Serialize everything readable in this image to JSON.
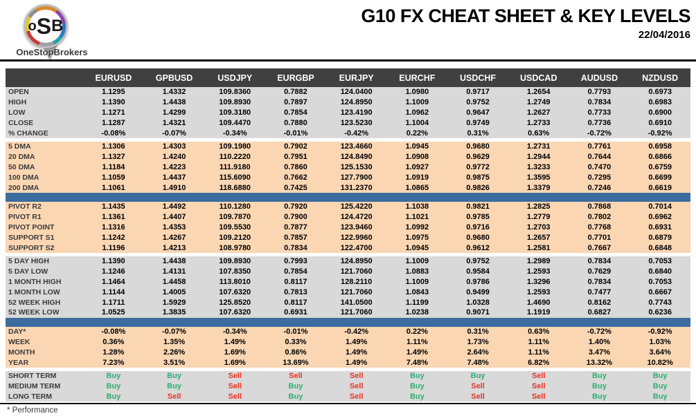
{
  "header": {
    "title": "G10 FX CHEAT SHEET & KEY LEVELS",
    "date": "22/04/2016"
  },
  "logo": {
    "letters": [
      "o",
      "S",
      "B"
    ],
    "brand": "OneStopBrokers"
  },
  "colors": {
    "header_bg": "#404040",
    "section_gray": "#d9d9d9",
    "section_peach": "#fad6b3",
    "accent_blue": "#3c6b9e",
    "buy_green": "#2eae71",
    "sell_red": "#ea3323",
    "pivot_green": "#00a550",
    "pivot_navy": "#203864",
    "support_red": "#f02c1e"
  },
  "table": {
    "columns": [
      "EURUSD",
      "GPBUSD",
      "USDJPY",
      "EURGBP",
      "EURJPY",
      "EURCHF",
      "USDCHF",
      "USDCAD",
      "AUDUSD",
      "NZDUSD"
    ],
    "sections": [
      {
        "id": "ohlc",
        "bg": "gray",
        "gap_before": false,
        "divider_before": false,
        "rows": [
          {
            "label": "OPEN",
            "values": [
              "1.1295",
              "1.4332",
              "109.8360",
              "0.7882",
              "124.0400",
              "1.0980",
              "0.9717",
              "1.2654",
              "0.7793",
              "0.6973"
            ]
          },
          {
            "label": "HIGH",
            "values": [
              "1.1390",
              "1.4438",
              "109.8930",
              "0.7897",
              "124.8950",
              "1.1009",
              "0.9752",
              "1.2749",
              "0.7834",
              "0.6983"
            ]
          },
          {
            "label": "LOW",
            "values": [
              "1.1271",
              "1.4299",
              "109.3180",
              "0.7854",
              "123.4190",
              "1.0962",
              "0.9647",
              "1.2627",
              "0.7733",
              "0.6900"
            ]
          },
          {
            "label": "CLOSE",
            "values": [
              "1.1287",
              "1.4321",
              "109.4470",
              "0.7880",
              "123.5230",
              "1.1004",
              "0.9749",
              "1.2733",
              "0.7736",
              "0.6910"
            ]
          },
          {
            "label": "% CHANGE",
            "values": [
              "-0.08%",
              "-0.07%",
              "-0.34%",
              "-0.01%",
              "-0.42%",
              "0.22%",
              "0.31%",
              "0.63%",
              "-0.72%",
              "-0.92%"
            ]
          }
        ]
      },
      {
        "id": "dma",
        "bg": "peach",
        "gap_before": true,
        "divider_before": false,
        "rows": [
          {
            "label": "5 DMA",
            "values": [
              "1.1306",
              "1.4303",
              "109.1980",
              "0.7902",
              "123.4660",
              "1.0945",
              "0.9680",
              "1.2731",
              "0.7761",
              "0.6958"
            ]
          },
          {
            "label": "20 DMA",
            "values": [
              "1.1327",
              "1.4240",
              "110.2220",
              "0.7951",
              "124.8490",
              "1.0908",
              "0.9629",
              "1.2944",
              "0.7644",
              "0.6866"
            ]
          },
          {
            "label": "50 DMA",
            "values": [
              "1.1184",
              "1.4223",
              "111.9180",
              "0.7860",
              "125.1530",
              "1.0927",
              "0.9772",
              "1.3233",
              "0.7470",
              "0.6759"
            ]
          },
          {
            "label": "100 DMA",
            "values": [
              "1.1059",
              "1.4437",
              "115.6090",
              "0.7662",
              "127.7900",
              "1.0919",
              "0.9875",
              "1.3595",
              "0.7295",
              "0.6699"
            ]
          },
          {
            "label": "200 DMA",
            "values": [
              "1.1061",
              "1.4910",
              "118.6880",
              "0.7425",
              "131.2370",
              "1.0865",
              "0.9826",
              "1.3379",
              "0.7246",
              "0.6619"
            ]
          }
        ]
      },
      {
        "id": "pivots",
        "bg": "peach",
        "gap_before": false,
        "divider_before": true,
        "rows": [
          {
            "label": "PIVOT R2",
            "label_class": "green",
            "values": [
              "1.1435",
              "1.4492",
              "110.1280",
              "0.7920",
              "125.4220",
              "1.1038",
              "0.9821",
              "1.2825",
              "0.7868",
              "0.7014"
            ]
          },
          {
            "label": "PIVOT R1",
            "label_class": "green",
            "values": [
              "1.1361",
              "1.4407",
              "109.7870",
              "0.7900",
              "124.4720",
              "1.1021",
              "0.9785",
              "1.2779",
              "0.7802",
              "0.6962"
            ]
          },
          {
            "label": "PIVOT POINT",
            "label_class": "navy",
            "values": [
              "1.1316",
              "1.4353",
              "109.5530",
              "0.7877",
              "123.9460",
              "1.0992",
              "0.9716",
              "1.2703",
              "0.7768",
              "0.6931"
            ]
          },
          {
            "label": "SUPPORT S1",
            "label_class": "red",
            "values": [
              "1.1242",
              "1.4267",
              "109.2120",
              "0.7857",
              "122.9960",
              "1.0975",
              "0.9680",
              "1.2657",
              "0.7701",
              "0.6879"
            ]
          },
          {
            "label": "SUPPORT S2",
            "label_class": "red",
            "values": [
              "1.1196",
              "1.4213",
              "108.9780",
              "0.7834",
              "122.4700",
              "1.0945",
              "0.9612",
              "1.2581",
              "0.7667",
              "0.6848"
            ]
          }
        ]
      },
      {
        "id": "ranges",
        "bg": "gray",
        "gap_before": true,
        "divider_before": false,
        "rows": [
          {
            "label": "5 DAY HIGH",
            "values": [
              "1.1390",
              "1.4438",
              "109.8930",
              "0.7993",
              "124.8950",
              "1.1009",
              "0.9752",
              "1.2989",
              "0.7834",
              "0.7053"
            ]
          },
          {
            "label": "5 DAY LOW",
            "values": [
              "1.1246",
              "1.4131",
              "107.8350",
              "0.7854",
              "121.7060",
              "1.0883",
              "0.9584",
              "1.2593",
              "0.7629",
              "0.6840"
            ]
          },
          {
            "label": "1 MONTH HIGH",
            "values": [
              "1.1464",
              "1.4458",
              "113.8010",
              "0.8117",
              "128.2110",
              "1.1009",
              "0.9786",
              "1.3296",
              "0.7834",
              "0.7053"
            ]
          },
          {
            "label": "1 MONTH LOW",
            "values": [
              "1.1144",
              "1.4005",
              "107.6320",
              "0.7813",
              "121.7060",
              "1.0843",
              "0.9499",
              "1.2593",
              "0.7477",
              "0.6667"
            ]
          },
          {
            "label": "52 WEEK HIGH",
            "values": [
              "1.1711",
              "1.5929",
              "125.8520",
              "0.8117",
              "141.0500",
              "1.1199",
              "1.0328",
              "1.4690",
              "0.8162",
              "0.7743"
            ]
          },
          {
            "label": "52 WEEK LOW",
            "values": [
              "1.0525",
              "1.3835",
              "107.6320",
              "0.6931",
              "121.7060",
              "1.0238",
              "0.9071",
              "1.1919",
              "0.6827",
              "0.6236"
            ]
          }
        ]
      },
      {
        "id": "performance",
        "bg": "peach",
        "gap_before": false,
        "divider_before": true,
        "rows": [
          {
            "label": "DAY*",
            "values": [
              "-0.08%",
              "-0.07%",
              "-0.34%",
              "-0.01%",
              "-0.42%",
              "0.22%",
              "0.31%",
              "0.63%",
              "-0.72%",
              "-0.92%"
            ]
          },
          {
            "label": "WEEK",
            "values": [
              "0.36%",
              "1.35%",
              "1.49%",
              "0.33%",
              "1.49%",
              "1.11%",
              "1.73%",
              "1.11%",
              "1.40%",
              "1.03%"
            ]
          },
          {
            "label": "MONTH",
            "values": [
              "1.28%",
              "2.26%",
              "1.69%",
              "0.86%",
              "1.49%",
              "1.49%",
              "2.64%",
              "1.11%",
              "3.47%",
              "3.64%"
            ]
          },
          {
            "label": "YEAR",
            "values": [
              "7.23%",
              "3.51%",
              "1.69%",
              "13.69%",
              "1.49%",
              "7.48%",
              "7.48%",
              "6.82%",
              "13.32%",
              "10.82%"
            ]
          }
        ]
      },
      {
        "id": "signals",
        "bg": "gray",
        "gap_before": true,
        "divider_before": false,
        "rows": [
          {
            "label": "SHORT TERM",
            "values": [
              "Buy",
              "Buy",
              "Sell",
              "Sell",
              "Sell",
              "Buy",
              "Buy",
              "Sell",
              "Buy",
              "Buy"
            ]
          },
          {
            "label": "MEDIUM TERM",
            "values": [
              "Buy",
              "Buy",
              "Sell",
              "Buy",
              "Sell",
              "Buy",
              "Sell",
              "Sell",
              "Buy",
              "Buy"
            ]
          },
          {
            "label": "LONG TERM",
            "values": [
              "Buy",
              "Sell",
              "Sell",
              "Buy",
              "Sell",
              "Buy",
              "Sell",
              "Sell",
              "Buy",
              "Buy"
            ]
          }
        ]
      }
    ]
  },
  "footer": {
    "note": "* Performance"
  }
}
